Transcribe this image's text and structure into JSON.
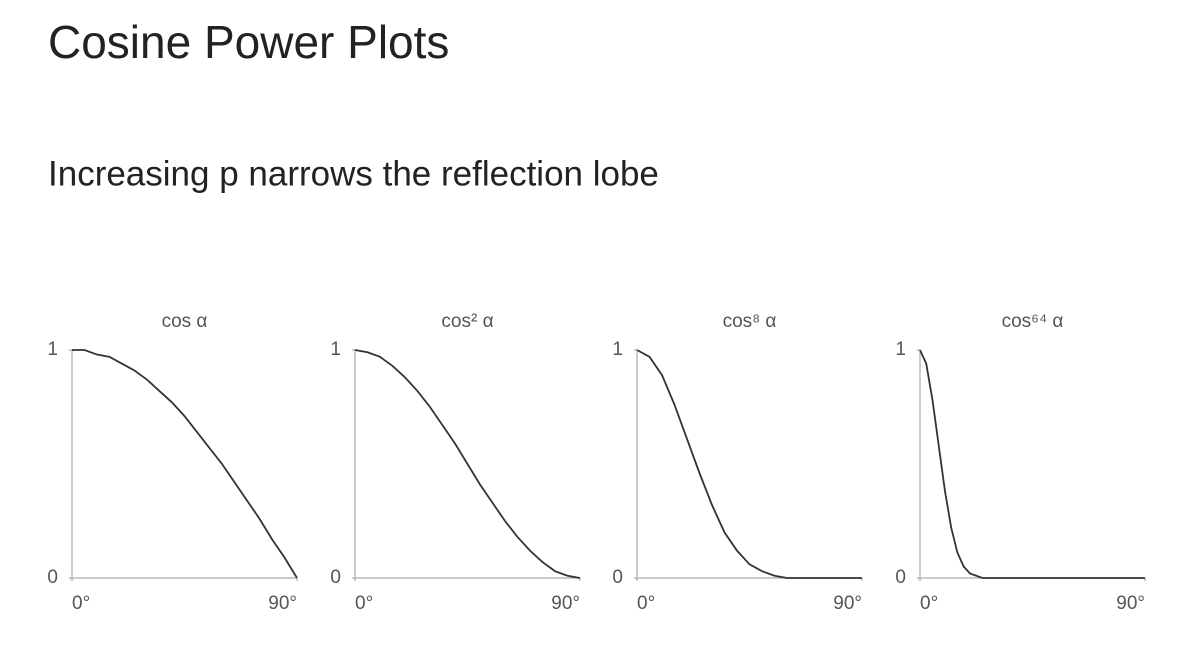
{
  "slide": {
    "title": "Cosine Power Plots",
    "subtitle": "Increasing p narrows the reflection lobe"
  },
  "chart_data": [
    {
      "type": "line",
      "title": "cos α",
      "color": "#333333",
      "x": [
        0,
        5,
        10,
        15,
        20,
        25,
        30,
        35,
        40,
        45,
        50,
        55,
        60,
        65,
        70,
        75,
        80,
        85,
        90
      ],
      "values": [
        1,
        1,
        0.98,
        0.97,
        0.94,
        0.91,
        0.87,
        0.82,
        0.77,
        0.71,
        0.64,
        0.57,
        0.5,
        0.42,
        0.34,
        0.26,
        0.17,
        0.09,
        0
      ],
      "xlim": [
        0,
        90
      ],
      "ylim": [
        0,
        1
      ],
      "xticks": [
        {
          "value": 0,
          "label": "0°"
        },
        {
          "value": 90,
          "label": "90°"
        }
      ],
      "yticks": [
        0,
        1
      ]
    },
    {
      "type": "line",
      "title": "cos² α",
      "color": "#333333",
      "x": [
        0,
        5,
        10,
        15,
        20,
        25,
        30,
        35,
        40,
        45,
        50,
        55,
        60,
        65,
        70,
        75,
        80,
        85,
        90
      ],
      "values": [
        1,
        0.99,
        0.97,
        0.93,
        0.88,
        0.82,
        0.75,
        0.67,
        0.59,
        0.5,
        0.41,
        0.33,
        0.25,
        0.18,
        0.12,
        0.07,
        0.03,
        0.01,
        0
      ],
      "xlim": [
        0,
        90
      ],
      "ylim": [
        0,
        1
      ],
      "xticks": [
        {
          "value": 0,
          "label": "0°"
        },
        {
          "value": 90,
          "label": "90°"
        }
      ],
      "yticks": [
        0,
        1
      ]
    },
    {
      "type": "line",
      "title": "cos⁸ α",
      "color": "#333333",
      "x": [
        0,
        5,
        10,
        15,
        20,
        25,
        30,
        35,
        40,
        45,
        50,
        55,
        60,
        65,
        70,
        75,
        80,
        85,
        90
      ],
      "values": [
        1,
        0.97,
        0.89,
        0.76,
        0.61,
        0.46,
        0.32,
        0.2,
        0.12,
        0.06,
        0.03,
        0.01,
        0,
        0,
        0,
        0,
        0,
        0,
        0
      ],
      "xlim": [
        0,
        90
      ],
      "ylim": [
        0,
        1
      ],
      "xticks": [
        {
          "value": 0,
          "label": "0°"
        },
        {
          "value": 90,
          "label": "90°"
        }
      ],
      "yticks": [
        0,
        1
      ]
    },
    {
      "type": "line",
      "title": "cos⁶⁴ α",
      "color": "#333333",
      "x": [
        0,
        2.5,
        5,
        7.5,
        10,
        12.5,
        15,
        17.5,
        20,
        22.5,
        25,
        30,
        45,
        60,
        75,
        90
      ],
      "values": [
        1,
        0.94,
        0.78,
        0.58,
        0.38,
        0.22,
        0.11,
        0.05,
        0.02,
        0.01,
        0,
        0,
        0,
        0,
        0,
        0
      ],
      "xlim": [
        0,
        90
      ],
      "ylim": [
        0,
        1
      ],
      "xticks": [
        {
          "value": 0,
          "label": "0°"
        },
        {
          "value": 90,
          "label": "90°"
        }
      ],
      "yticks": [
        0,
        1
      ]
    }
  ]
}
